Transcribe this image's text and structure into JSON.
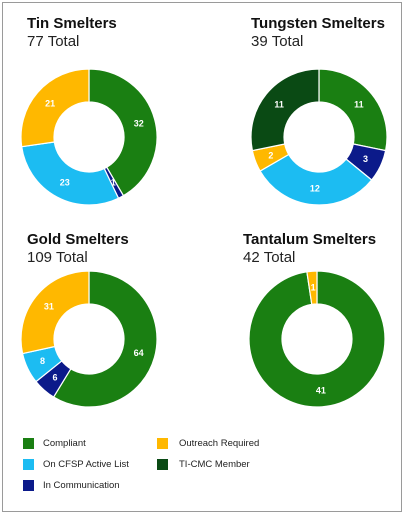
{
  "chart_data": [
    {
      "type": "donut",
      "title": "Tin Smelters",
      "total": 77,
      "total_label": "Total",
      "slices": [
        {
          "label": "Compliant",
          "value": 32,
          "color": "#1a7f12"
        },
        {
          "label": "In Communication",
          "value": 1,
          "color": "#0b1a8a"
        },
        {
          "label": "On CFSP Active List",
          "value": 23,
          "color": "#1cbcf2"
        },
        {
          "label": "Outreach Required",
          "value": 21,
          "color": "#ffb800"
        }
      ],
      "start_angle": 0
    },
    {
      "type": "donut",
      "title": "Tungsten Smelters",
      "total": 39,
      "total_label": "Total",
      "slices": [
        {
          "label": "Compliant",
          "value": 11,
          "color": "#1a7f12"
        },
        {
          "label": "In Communication",
          "value": 3,
          "color": "#0b1a8a"
        },
        {
          "label": "On CFSP Active List",
          "value": 12,
          "color": "#1cbcf2"
        },
        {
          "label": "Outreach Required",
          "value": 2,
          "color": "#ffb800"
        },
        {
          "label": "TI-CMC Member",
          "value": 11,
          "color": "#0a4a14"
        }
      ],
      "start_angle": 0
    },
    {
      "type": "donut",
      "title": "Gold Smelters",
      "total": 109,
      "total_label": "Total",
      "slices": [
        {
          "label": "Compliant",
          "value": 64,
          "color": "#1a7f12"
        },
        {
          "label": "In Communication",
          "value": 6,
          "color": "#0b1a8a"
        },
        {
          "label": "On CFSP Active List",
          "value": 8,
          "color": "#1cbcf2"
        },
        {
          "label": "Outreach Required",
          "value": 31,
          "color": "#ffb800"
        }
      ],
      "start_angle": 0
    },
    {
      "type": "donut",
      "title": "Tantalum Smelters",
      "total": 42,
      "total_label": "Total",
      "slices": [
        {
          "label": "Compliant",
          "value": 41,
          "color": "#1a7f12"
        },
        {
          "label": "Outreach Required",
          "value": 1,
          "color": "#ffb800"
        }
      ],
      "start_angle": 0
    }
  ],
  "legend": [
    {
      "label": "Compliant",
      "color": "#1a7f12"
    },
    {
      "label": "Outreach Required",
      "color": "#ffb800"
    },
    {
      "label": "On CFSP Active List",
      "color": "#1cbcf2"
    },
    {
      "label": "TI-CMC Member",
      "color": "#0a4a14"
    },
    {
      "label": "In Communication",
      "color": "#0b1a8a"
    }
  ]
}
